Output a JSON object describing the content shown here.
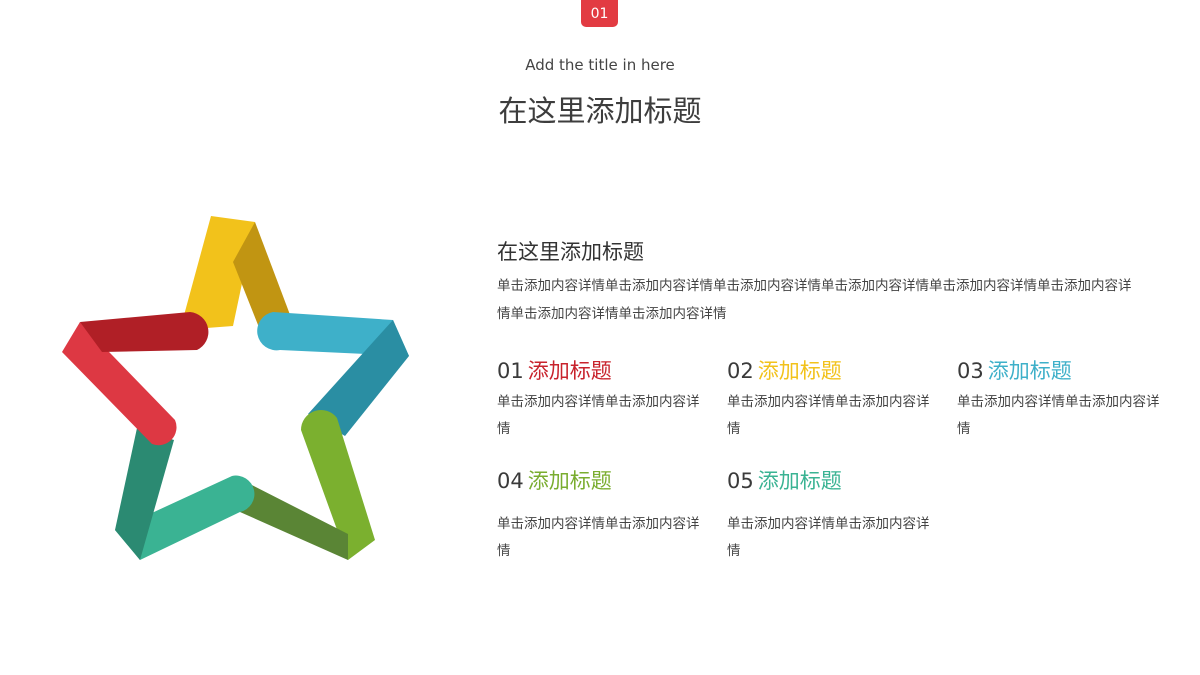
{
  "header": {
    "badge": "01",
    "subtitle": "Add the title in here",
    "title": "在这里添加标题"
  },
  "section": {
    "title": "在这里添加标题",
    "desc": "单击添加内容详情单击添加内容详情单击添加内容详情单击添加内容详情单击添加内容详情单击添加内容详情单击添加内容详情单击添加内容详情"
  },
  "items": [
    {
      "num": "01",
      "label": "添加标题",
      "desc": "单击添加内容详情单击添加内容详情",
      "color": "#c8232c"
    },
    {
      "num": "02",
      "label": "添加标题",
      "desc": "单击添加内容详情单击添加内容详情",
      "color": "#f2c21b"
    },
    {
      "num": "03",
      "label": "添加标题",
      "desc": "单击添加内容详情单击添加内容详情",
      "color": "#3eb0c9"
    },
    {
      "num": "04",
      "label": "添加标题",
      "desc": "单击添加内容详情单击添加内容详情",
      "color": "#7aad2f"
    },
    {
      "num": "05",
      "label": "添加标题",
      "desc": "单击添加内容详情单击添加内容详情",
      "color": "#3ab393"
    }
  ],
  "star_colors": {
    "yellow": "#f2c21b",
    "yellow_dark": "#c19512",
    "blue": "#3eb0c9",
    "blue_dark": "#2a8ea3",
    "red": "#dd3843",
    "red_dark": "#b01f26",
    "green": "#7bb02f",
    "green_dark": "#5a8535",
    "teal": "#3ab393",
    "teal_dark": "#2b8a72"
  }
}
